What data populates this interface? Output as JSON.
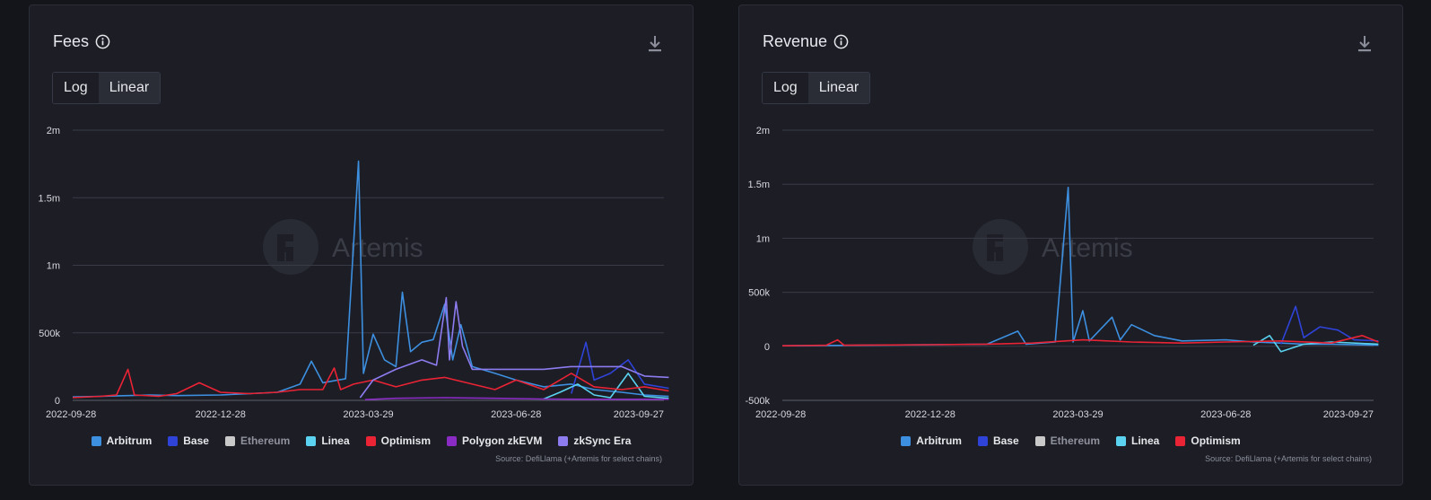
{
  "panels": [
    {
      "id": "fees",
      "title": "Fees",
      "toggle": [
        "Log",
        "Linear"
      ],
      "active_toggle": "Linear",
      "source": "Source: DefiLlama (+Artemis for select chains)",
      "watermark": "Artemis",
      "legend": [
        {
          "name": "Arbitrum",
          "color": "#3d8fe0",
          "muted": false
        },
        {
          "name": "Base",
          "color": "#2f43d8",
          "muted": false
        },
        {
          "name": "Ethereum",
          "color": "#c9c9c9",
          "muted": true
        },
        {
          "name": "Linea",
          "color": "#5ad2f0",
          "muted": false
        },
        {
          "name": "Optimism",
          "color": "#ea2335",
          "muted": false
        },
        {
          "name": "Polygon zkEVM",
          "color": "#8a2bc4",
          "muted": false
        },
        {
          "name": "zkSync Era",
          "color": "#8c7cf0",
          "muted": false
        }
      ]
    },
    {
      "id": "revenue",
      "title": "Revenue",
      "toggle": [
        "Log",
        "Linear"
      ],
      "active_toggle": "Linear",
      "source": "Source: DefiLlama (+Artemis for select chains)",
      "watermark": "Artemis",
      "legend": [
        {
          "name": "Arbitrum",
          "color": "#3d8fe0",
          "muted": false
        },
        {
          "name": "Base",
          "color": "#2f43d8",
          "muted": false
        },
        {
          "name": "Ethereum",
          "color": "#c9c9c9",
          "muted": true
        },
        {
          "name": "Linea",
          "color": "#5ad2f0",
          "muted": false
        },
        {
          "name": "Optimism",
          "color": "#ea2335",
          "muted": false
        }
      ]
    }
  ],
  "chart_data": [
    {
      "type": "line",
      "title": "Fees",
      "x_ticks": [
        "2022-09-28",
        "2022-12-28",
        "2023-03-29",
        "2023-06-28",
        "2023-09-27"
      ],
      "xlim": [
        "2022-09-28",
        "2023-10-01"
      ],
      "ylim": [
        0,
        2000000
      ],
      "y_ticks": [
        0,
        500000,
        1000000,
        1500000,
        2000000
      ],
      "y_tick_labels": [
        "0",
        "500k",
        "1m",
        "1.5m",
        "2m"
      ],
      "grid": true,
      "legend_position": "bottom",
      "series": [
        {
          "name": "Arbitrum",
          "color": "#3d8fe0",
          "points": [
            [
              "2022-09-28",
              25000
            ],
            [
              "2022-10-15",
              30000
            ],
            [
              "2022-11-01",
              35000
            ],
            [
              "2022-11-15",
              40000
            ],
            [
              "2022-12-01",
              35000
            ],
            [
              "2022-12-28",
              40000
            ],
            [
              "2023-01-15",
              50000
            ],
            [
              "2023-02-01",
              60000
            ],
            [
              "2023-02-15",
              120000
            ],
            [
              "2023-02-22",
              290000
            ],
            [
              "2023-03-01",
              130000
            ],
            [
              "2023-03-15",
              160000
            ],
            [
              "2023-03-23",
              1770000
            ],
            [
              "2023-03-26",
              200000
            ],
            [
              "2023-04-01",
              490000
            ],
            [
              "2023-04-08",
              300000
            ],
            [
              "2023-04-15",
              250000
            ],
            [
              "2023-04-19",
              800000
            ],
            [
              "2023-04-24",
              360000
            ],
            [
              "2023-05-01",
              430000
            ],
            [
              "2023-05-08",
              450000
            ],
            [
              "2023-05-15",
              710000
            ],
            [
              "2023-05-20",
              300000
            ],
            [
              "2023-05-25",
              560000
            ],
            [
              "2023-06-01",
              250000
            ],
            [
              "2023-06-15",
              200000
            ],
            [
              "2023-06-28",
              150000
            ],
            [
              "2023-07-15",
              100000
            ],
            [
              "2023-08-01",
              120000
            ],
            [
              "2023-08-15",
              80000
            ],
            [
              "2023-09-01",
              60000
            ],
            [
              "2023-09-15",
              40000
            ],
            [
              "2023-09-30",
              30000
            ]
          ]
        },
        {
          "name": "Base",
          "color": "#2f43d8",
          "points": [
            [
              "2023-08-01",
              50000
            ],
            [
              "2023-08-10",
              430000
            ],
            [
              "2023-08-15",
              150000
            ],
            [
              "2023-08-25",
              200000
            ],
            [
              "2023-09-05",
              300000
            ],
            [
              "2023-09-15",
              120000
            ],
            [
              "2023-09-30",
              90000
            ]
          ]
        },
        {
          "name": "Linea",
          "color": "#5ad2f0",
          "points": [
            [
              "2023-07-15",
              10000
            ],
            [
              "2023-07-25",
              60000
            ],
            [
              "2023-08-05",
              120000
            ],
            [
              "2023-08-15",
              40000
            ],
            [
              "2023-08-25",
              20000
            ],
            [
              "2023-09-05",
              200000
            ],
            [
              "2023-09-15",
              30000
            ],
            [
              "2023-09-30",
              15000
            ]
          ]
        },
        {
          "name": "Optimism",
          "color": "#ea2335",
          "points": [
            [
              "2022-09-28",
              20000
            ],
            [
              "2022-10-15",
              30000
            ],
            [
              "2022-10-25",
              40000
            ],
            [
              "2022-11-01",
              230000
            ],
            [
              "2022-11-05",
              40000
            ],
            [
              "2022-11-20",
              30000
            ],
            [
              "2022-12-01",
              50000
            ],
            [
              "2022-12-15",
              130000
            ],
            [
              "2022-12-28",
              60000
            ],
            [
              "2023-01-15",
              50000
            ],
            [
              "2023-02-01",
              60000
            ],
            [
              "2023-02-15",
              80000
            ],
            [
              "2023-03-01",
              80000
            ],
            [
              "2023-03-08",
              240000
            ],
            [
              "2023-03-12",
              80000
            ],
            [
              "2023-03-20",
              120000
            ],
            [
              "2023-04-01",
              150000
            ],
            [
              "2023-04-15",
              100000
            ],
            [
              "2023-05-01",
              150000
            ],
            [
              "2023-05-15",
              170000
            ],
            [
              "2023-06-01",
              120000
            ],
            [
              "2023-06-15",
              80000
            ],
            [
              "2023-06-28",
              150000
            ],
            [
              "2023-07-15",
              80000
            ],
            [
              "2023-08-01",
              200000
            ],
            [
              "2023-08-15",
              100000
            ],
            [
              "2023-09-01",
              80000
            ],
            [
              "2023-09-15",
              100000
            ],
            [
              "2023-09-30",
              70000
            ]
          ]
        },
        {
          "name": "Polygon zkEVM",
          "color": "#8a2bc4",
          "points": [
            [
              "2023-03-27",
              5000
            ],
            [
              "2023-04-15",
              15000
            ],
            [
              "2023-05-15",
              20000
            ],
            [
              "2023-06-15",
              15000
            ],
            [
              "2023-07-15",
              10000
            ],
            [
              "2023-08-15",
              8000
            ],
            [
              "2023-09-30",
              8000
            ]
          ]
        },
        {
          "name": "zkSync Era",
          "color": "#8c7cf0",
          "points": [
            [
              "2023-03-24",
              20000
            ],
            [
              "2023-04-01",
              150000
            ],
            [
              "2023-04-15",
              230000
            ],
            [
              "2023-05-01",
              300000
            ],
            [
              "2023-05-10",
              260000
            ],
            [
              "2023-05-16",
              760000
            ],
            [
              "2023-05-18",
              300000
            ],
            [
              "2023-05-22",
              730000
            ],
            [
              "2023-05-26",
              400000
            ],
            [
              "2023-06-01",
              230000
            ],
            [
              "2023-06-28",
              230000
            ],
            [
              "2023-07-15",
              230000
            ],
            [
              "2023-08-01",
              250000
            ],
            [
              "2023-08-15",
              250000
            ],
            [
              "2023-09-01",
              250000
            ],
            [
              "2023-09-15",
              180000
            ],
            [
              "2023-09-30",
              170000
            ]
          ]
        }
      ]
    },
    {
      "type": "line",
      "title": "Revenue",
      "x_ticks": [
        "2022-09-28",
        "2022-12-28",
        "2023-03-29",
        "2023-06-28",
        "2023-09-27"
      ],
      "xlim": [
        "2022-09-28",
        "2023-10-01"
      ],
      "ylim": [
        -500000,
        2000000
      ],
      "y_ticks": [
        -500000,
        0,
        500000,
        1000000,
        1500000,
        2000000
      ],
      "y_tick_labels": [
        "-500k",
        "0",
        "500k",
        "1m",
        "1.5m",
        "2m"
      ],
      "grid": true,
      "legend_position": "bottom",
      "series": [
        {
          "name": "Arbitrum",
          "color": "#3d8fe0",
          "points": [
            [
              "2022-09-28",
              5000
            ],
            [
              "2022-11-01",
              8000
            ],
            [
              "2022-12-28",
              15000
            ],
            [
              "2023-02-01",
              20000
            ],
            [
              "2023-02-20",
              140000
            ],
            [
              "2023-02-25",
              20000
            ],
            [
              "2023-03-15",
              40000
            ],
            [
              "2023-03-23",
              1470000
            ],
            [
              "2023-03-26",
              40000
            ],
            [
              "2023-04-01",
              330000
            ],
            [
              "2023-04-05",
              50000
            ],
            [
              "2023-04-19",
              270000
            ],
            [
              "2023-04-24",
              60000
            ],
            [
              "2023-05-01",
              200000
            ],
            [
              "2023-05-15",
              100000
            ],
            [
              "2023-06-01",
              50000
            ],
            [
              "2023-06-28",
              60000
            ],
            [
              "2023-07-15",
              40000
            ],
            [
              "2023-08-01",
              30000
            ],
            [
              "2023-08-15",
              20000
            ],
            [
              "2023-09-01",
              20000
            ],
            [
              "2023-09-30",
              10000
            ]
          ]
        },
        {
          "name": "Base",
          "color": "#2f43d8",
          "points": [
            [
              "2023-08-01",
              20000
            ],
            [
              "2023-08-10",
              370000
            ],
            [
              "2023-08-15",
              80000
            ],
            [
              "2023-08-25",
              180000
            ],
            [
              "2023-09-05",
              150000
            ],
            [
              "2023-09-15",
              60000
            ],
            [
              "2023-09-30",
              50000
            ]
          ]
        },
        {
          "name": "Linea",
          "color": "#5ad2f0",
          "points": [
            [
              "2023-07-15",
              10000
            ],
            [
              "2023-07-25",
              100000
            ],
            [
              "2023-08-01",
              -50000
            ],
            [
              "2023-08-15",
              20000
            ],
            [
              "2023-09-01",
              40000
            ],
            [
              "2023-09-30",
              20000
            ]
          ]
        },
        {
          "name": "Optimism",
          "color": "#ea2335",
          "points": [
            [
              "2022-09-28",
              5000
            ],
            [
              "2022-10-25",
              10000
            ],
            [
              "2022-11-01",
              60000
            ],
            [
              "2022-11-05",
              10000
            ],
            [
              "2022-12-28",
              15000
            ],
            [
              "2023-02-01",
              20000
            ],
            [
              "2023-03-01",
              30000
            ],
            [
              "2023-04-01",
              60000
            ],
            [
              "2023-05-01",
              40000
            ],
            [
              "2023-06-01",
              30000
            ],
            [
              "2023-06-28",
              40000
            ],
            [
              "2023-08-01",
              50000
            ],
            [
              "2023-09-01",
              30000
            ],
            [
              "2023-09-20",
              100000
            ],
            [
              "2023-09-30",
              40000
            ]
          ]
        }
      ]
    }
  ]
}
